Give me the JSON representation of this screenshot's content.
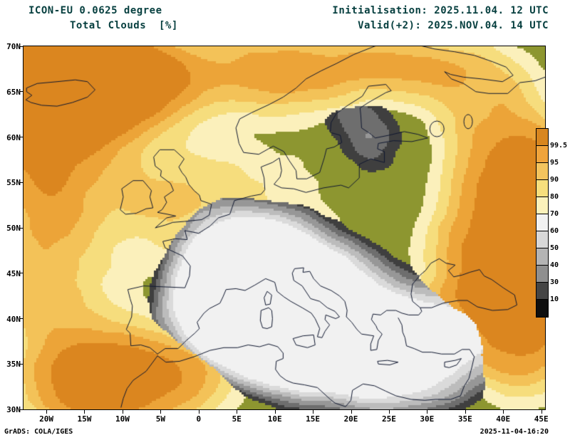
{
  "header": {
    "model": "ICON-EU 0.0625 degree",
    "field": "Total Clouds  [%]",
    "init": "Initialisation: 2025.11.04. 12 UTC",
    "valid": "Valid(+2): 2025.NOV.04. 14 UTC"
  },
  "map": {
    "lat_labels": [
      "70N",
      "65N",
      "60N",
      "55N",
      "50N",
      "45N",
      "40N",
      "35N",
      "30N"
    ],
    "lon_labels": [
      "20W",
      "15W",
      "10W",
      "5W",
      "0",
      "5E",
      "10E",
      "15E",
      "20E",
      "25E",
      "30E",
      "35E",
      "40E",
      "45E"
    ],
    "clear_sky_color": "#8d9630",
    "coastline_color": "#101830"
  },
  "colorbar": {
    "labels": [
      "99.5",
      "95",
      "90",
      "80",
      "70",
      "60",
      "50",
      "40",
      "30",
      "10"
    ],
    "colors": [
      "#d8861f",
      "#f0a43c",
      "#f4c45e",
      "#f7df7d",
      "#fcf2bb",
      "#f2f2f2",
      "#d8d8d8",
      "#b4b4b4",
      "#8f8f8f",
      "#454545",
      "#0f0f0f"
    ],
    "units": "%"
  },
  "footer": {
    "left": "GrADS: COLA/IGES",
    "right": "2025-11-04-16:20"
  },
  "chart_data": {
    "type": "heatmap",
    "title": "ICON-EU 0.0625 degree Total Clouds [%]",
    "init_time": "2025.11.04. 12 UTC",
    "valid_time": "2025.NOV.04. 14 UTC",
    "forecast_step": "+2",
    "x_axis": {
      "label": "longitude",
      "ticks": [
        "20W",
        "15W",
        "10W",
        "5W",
        "0",
        "5E",
        "10E",
        "15E",
        "20E",
        "25E",
        "30E",
        "35E",
        "40E",
        "45E"
      ]
    },
    "y_axis": {
      "label": "latitude",
      "ticks": [
        "70N",
        "65N",
        "60N",
        "55N",
        "50N",
        "45N",
        "40N",
        "35N",
        "30N"
      ]
    },
    "legend": {
      "position": "right",
      "values": [
        99.5,
        95,
        90,
        80,
        70,
        60,
        50,
        40,
        30,
        10
      ],
      "colors": [
        "#d8861f",
        "#f0a43c",
        "#f4c45e",
        "#f7df7d",
        "#fcf2bb",
        "#f2f2f2",
        "#d8d8d8",
        "#b4b4b4",
        "#8f8f8f",
        "#454545",
        "#0f0f0f"
      ],
      "units": "%"
    },
    "clear_color": "#8d9630",
    "grid": false
  }
}
